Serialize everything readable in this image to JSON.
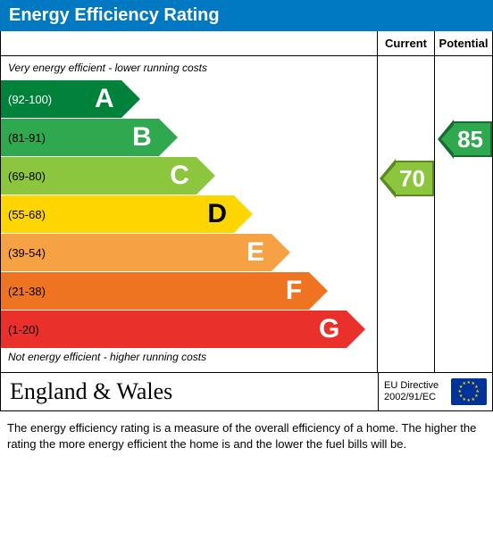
{
  "title": "Energy Efficiency Rating",
  "columns": {
    "current": "Current",
    "potential": "Potential"
  },
  "captions": {
    "top": "Very energy efficient - lower running costs",
    "bottom": "Not energy efficient - higher running costs"
  },
  "bands": [
    {
      "letter": "A",
      "range": "(92-100)",
      "width_pct": 32,
      "color": "#00823a",
      "text_color": "#ffffff"
    },
    {
      "letter": "B",
      "range": "(81-91)",
      "width_pct": 42,
      "color": "#2fa84f",
      "text_color": "#ffffff"
    },
    {
      "letter": "C",
      "range": "(69-80)",
      "width_pct": 52,
      "color": "#8cc63f",
      "text_color": "#ffffff"
    },
    {
      "letter": "D",
      "range": "(55-68)",
      "width_pct": 62,
      "color": "#ffd500",
      "text_color": "#000000"
    },
    {
      "letter": "E",
      "range": "(39-54)",
      "width_pct": 72,
      "color": "#f7a145",
      "text_color": "#ffffff"
    },
    {
      "letter": "F",
      "range": "(21-38)",
      "width_pct": 82,
      "color": "#ee7422",
      "text_color": "#ffffff"
    },
    {
      "letter": "G",
      "range": "(1-20)",
      "width_pct": 92,
      "color": "#e9302a",
      "text_color": "#ffffff"
    }
  ],
  "current": {
    "value": "70",
    "band_index": 2,
    "color": "#8cc63f",
    "border_color": "#5a8a1f"
  },
  "potential": {
    "value": "85",
    "band_index": 1,
    "color": "#2fa84f",
    "border_color": "#1a6b30"
  },
  "footer": {
    "region": "England & Wales",
    "directive_line1": "EU Directive",
    "directive_line2": "2002/91/EC"
  },
  "description": "The energy efficiency rating is a measure of the overall efficiency of a home.  The higher the rating the more energy efficient the home is and the lower the fuel bills will be.",
  "layout": {
    "band_height": 42,
    "band_gap": 2,
    "top_caption_height": 24
  }
}
